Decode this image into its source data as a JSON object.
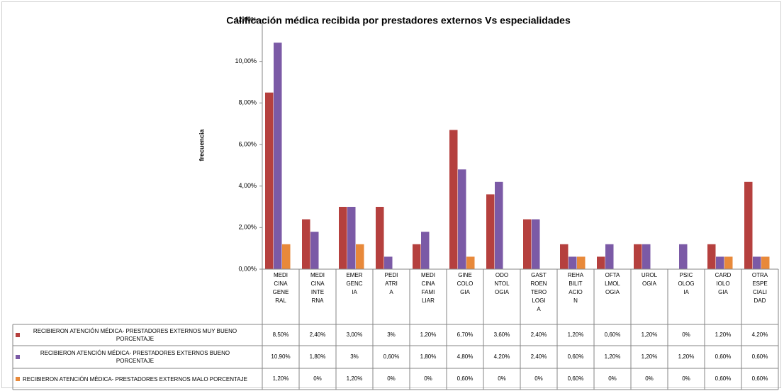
{
  "chart_data": {
    "type": "bar",
    "title": "Calificación médica  recibida por prestadores externos Vs especialidades",
    "y_label": "frecuencia",
    "categories": [
      "MEDI\nCINA\nGENE\nRAL",
      "MEDI\nCINA\nINTE\nRNA",
      "EMER\nGENC\nIA",
      "PEDI\nATRI\nA",
      "MEDI\nCINA\nFAMI\nLIAR",
      "GINE\nCOLO\nGIA",
      "ODO\nNTOL\nOGIA",
      "GAST\nROEN\nTERO\nLOGI\nA",
      "REHA\nBILIT\nACIO\nN",
      "OFTA\nLMOL\nOGIA",
      "UROL\nOGIA",
      "PSIC\nOLOG\nIA",
      "CARD\nIOLO\nGIA",
      "OTRA\nESPE\nCIALI\nDAD"
    ],
    "series": [
      {
        "name": "RECIBIERON ATENCIÓN MÉDICA- PRESTADORES EXTERNOS MUY BUENO PORCENTAJE",
        "color": "#b5403e",
        "values": [
          8.5,
          2.4,
          3.0,
          3,
          1.2,
          6.7,
          3.6,
          2.4,
          1.2,
          0.6,
          1.2,
          0,
          1.2,
          4.2
        ],
        "value_labels": [
          "8,50%",
          "2,40%",
          "3,00%",
          "3%",
          "1,20%",
          "6,70%",
          "3,60%",
          "2,40%",
          "1,20%",
          "0,60%",
          "1,20%",
          "0%",
          "1,20%",
          "4,20%"
        ]
      },
      {
        "name": "RECIBIERON ATENCIÓN MÉDICA- PRESTADORES EXTERNOS BUENO PORCENTAJE",
        "color": "#7b5aa6",
        "values": [
          10.9,
          1.8,
          3,
          0.6,
          1.8,
          4.8,
          4.2,
          2.4,
          0.6,
          1.2,
          1.2,
          1.2,
          0.6,
          0.6
        ],
        "value_labels": [
          "10,90%",
          "1,80%",
          "3%",
          "0,60%",
          "1,80%",
          "4,80%",
          "4,20%",
          "2,40%",
          "0,60%",
          "1,20%",
          "1,20%",
          "1,20%",
          "0,60%",
          "0,60%"
        ]
      },
      {
        "name": "RECIBIERON ATENCIÓN MÉDICA- PRESTADORES EXTERNOS MALO PORCENTAJE",
        "color": "#e8893a",
        "values": [
          1.2,
          0,
          1.2,
          0,
          0,
          0.6,
          0,
          0,
          0.6,
          0,
          0,
          0,
          0.6,
          0.6
        ],
        "value_labels": [
          "1,20%",
          "0%",
          "1,20%",
          "0%",
          "0%",
          "0,60%",
          "0%",
          "0%",
          "0,60%",
          "0%",
          "0%",
          "0%",
          "0,60%",
          "0,60%"
        ]
      }
    ],
    "ylim": [
      0,
      12
    ],
    "yticks": [
      {
        "value": 0,
        "label": "0,00%"
      },
      {
        "value": 2,
        "label": "2,00%"
      },
      {
        "value": 4,
        "label": "4,00%"
      },
      {
        "value": 6,
        "label": "6,00%"
      },
      {
        "value": 8,
        "label": "8,00%"
      },
      {
        "value": 10,
        "label": "10,00%"
      },
      {
        "value": 12,
        "label": "12,00%"
      }
    ],
    "grid": false
  }
}
